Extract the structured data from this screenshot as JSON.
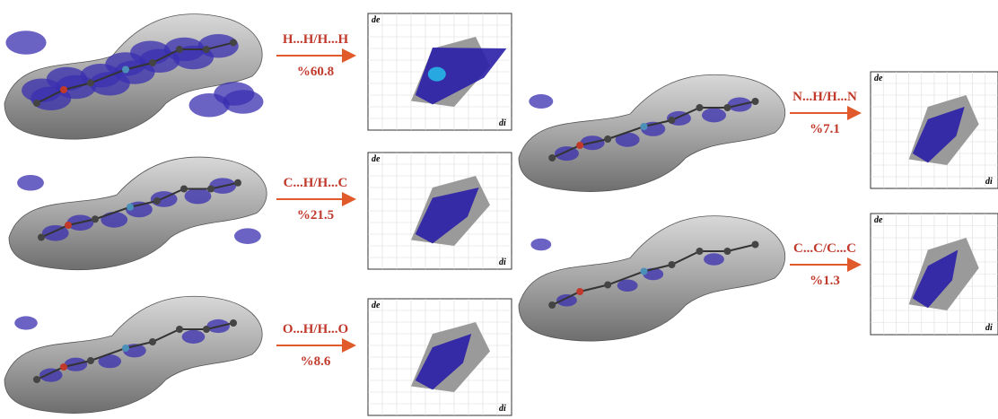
{
  "panels": [
    {
      "contact": "H...H/H...H",
      "percent": "%60.8",
      "y_axis": "de",
      "x_axis": "di"
    },
    {
      "contact": "C...H/H...C",
      "percent": "%21.5",
      "y_axis": "de",
      "x_axis": "di"
    },
    {
      "contact": "O...H/H...O",
      "percent": "%8.6",
      "y_axis": "de",
      "x_axis": "di"
    },
    {
      "contact": "N...H/H...N",
      "percent": "%7.1",
      "y_axis": "de",
      "x_axis": "di"
    },
    {
      "contact": "C...C/C...C",
      "percent": "%1.3",
      "y_axis": "de",
      "x_axis": "di"
    }
  ]
}
